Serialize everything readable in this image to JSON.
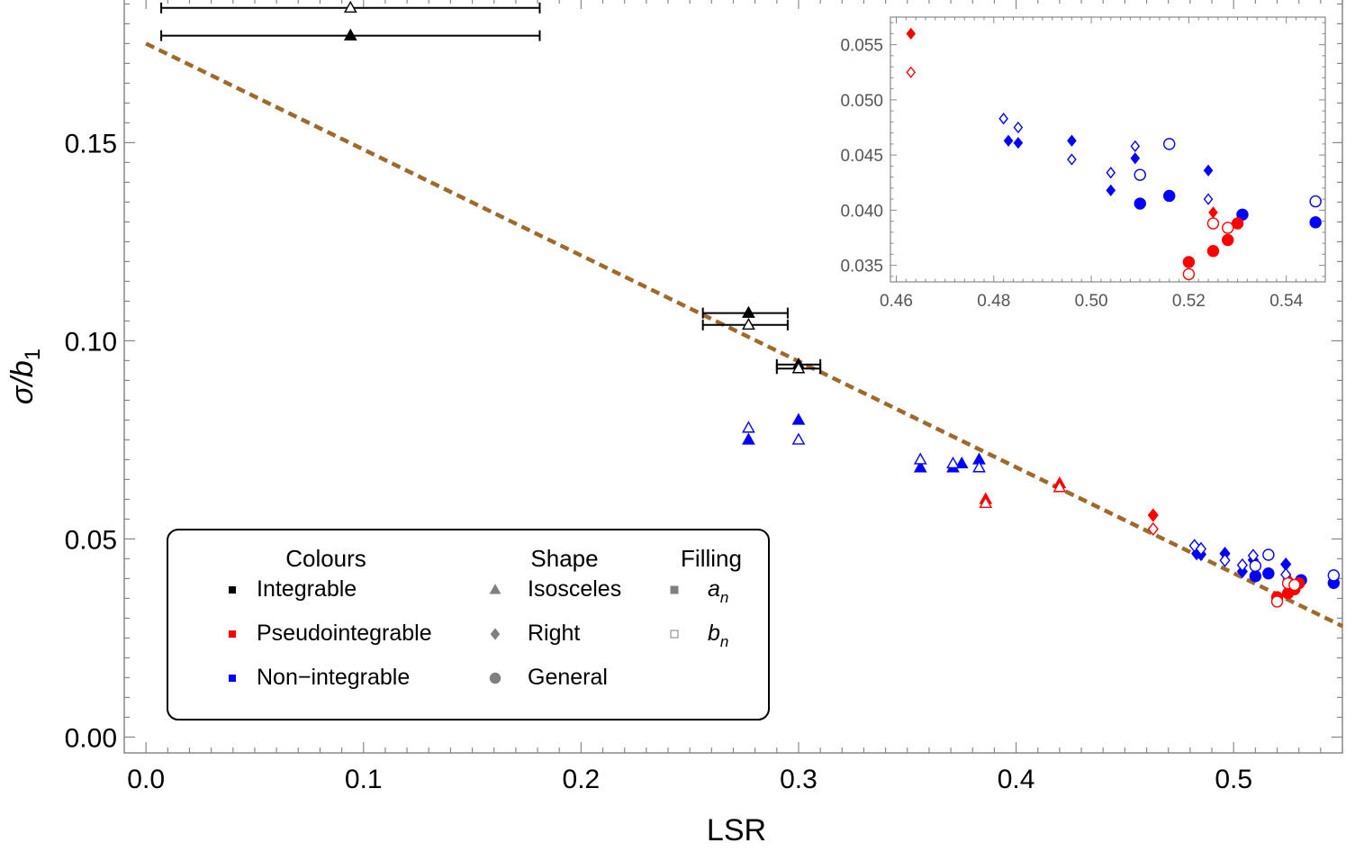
{
  "chart_data": {
    "type": "scatter",
    "xlabel": "LSR",
    "ylabel_main": "σ/b",
    "ylabel_sub": "1",
    "xlim": [
      -0.01,
      0.55
    ],
    "ylim": [
      -0.004,
      0.186
    ],
    "x_ticks": [
      0.0,
      0.1,
      0.2,
      0.3,
      0.4,
      0.5
    ],
    "x_tick_labels": [
      "0.0",
      "0.1",
      "0.2",
      "0.3",
      "0.4",
      "0.5"
    ],
    "y_ticks": [
      0.0,
      0.05,
      0.1,
      0.15
    ],
    "y_tick_labels": [
      "0.00",
      "0.05",
      "0.10",
      "0.15"
    ],
    "colors": {
      "Integrable": "#000000",
      "Pseudointegrable": "#ff0000",
      "Non-integrable": "#0000ff",
      "fit": "#a0692c"
    },
    "fit_line": {
      "style": "dashed",
      "points": [
        [
          0.0,
          0.175
        ],
        [
          0.55,
          0.028
        ]
      ]
    },
    "series": [
      {
        "cls": "Integrable",
        "shape": "triangle",
        "fill": "filled",
        "points": [
          [
            0.094,
            0.177
          ],
          [
            0.277,
            0.107
          ],
          [
            0.3,
            0.094
          ]
        ],
        "xerr": [
          [
            0.007,
            0.181
          ],
          [
            0.256,
            0.295
          ],
          [
            0.29,
            0.31
          ]
        ]
      },
      {
        "cls": "Integrable",
        "shape": "triangle",
        "fill": "open",
        "points": [
          [
            0.094,
            0.184
          ],
          [
            0.277,
            0.104
          ],
          [
            0.3,
            0.093
          ]
        ],
        "xerr": [
          [
            0.007,
            0.181
          ],
          [
            0.256,
            0.295
          ],
          [
            0.29,
            0.31
          ]
        ]
      },
      {
        "cls": "Non-integrable",
        "shape": "triangle",
        "fill": "filled",
        "points": [
          [
            0.277,
            0.075
          ],
          [
            0.3,
            0.08
          ],
          [
            0.356,
            0.068
          ],
          [
            0.371,
            0.068
          ],
          [
            0.375,
            0.069
          ],
          [
            0.383,
            0.07
          ]
        ]
      },
      {
        "cls": "Non-integrable",
        "shape": "triangle",
        "fill": "open",
        "points": [
          [
            0.277,
            0.078
          ],
          [
            0.3,
            0.075
          ],
          [
            0.356,
            0.07
          ],
          [
            0.371,
            0.069
          ],
          [
            0.383,
            0.068
          ]
        ]
      },
      {
        "cls": "Pseudointegrable",
        "shape": "triangle",
        "fill": "filled",
        "points": [
          [
            0.386,
            0.06
          ],
          [
            0.42,
            0.064
          ]
        ]
      },
      {
        "cls": "Pseudointegrable",
        "shape": "triangle",
        "fill": "open",
        "points": [
          [
            0.386,
            0.059
          ],
          [
            0.42,
            0.063
          ]
        ]
      },
      {
        "cls": "Pseudointegrable",
        "shape": "diamond",
        "fill": "filled",
        "points": [
          [
            0.463,
            0.056
          ],
          [
            0.525,
            0.0398
          ]
        ]
      },
      {
        "cls": "Pseudointegrable",
        "shape": "diamond",
        "fill": "open",
        "points": [
          [
            0.463,
            0.0525
          ]
        ]
      },
      {
        "cls": "Non-integrable",
        "shape": "diamond",
        "fill": "filled",
        "points": [
          [
            0.483,
            0.0463
          ],
          [
            0.485,
            0.0461
          ],
          [
            0.496,
            0.0463
          ],
          [
            0.504,
            0.0418
          ],
          [
            0.509,
            0.0447
          ],
          [
            0.524,
            0.0436
          ]
        ]
      },
      {
        "cls": "Non-integrable",
        "shape": "diamond",
        "fill": "open",
        "points": [
          [
            0.482,
            0.0483
          ],
          [
            0.485,
            0.0475
          ],
          [
            0.496,
            0.0446
          ],
          [
            0.504,
            0.0434
          ],
          [
            0.509,
            0.0458
          ],
          [
            0.524,
            0.041
          ]
        ]
      },
      {
        "cls": "Non-integrable",
        "shape": "circle",
        "fill": "filled",
        "points": [
          [
            0.51,
            0.0406
          ],
          [
            0.516,
            0.0413
          ],
          [
            0.531,
            0.0396
          ],
          [
            0.546,
            0.0389
          ]
        ]
      },
      {
        "cls": "Non-integrable",
        "shape": "circle",
        "fill": "open",
        "points": [
          [
            0.51,
            0.0432
          ],
          [
            0.516,
            0.046
          ],
          [
            0.546,
            0.0408
          ]
        ]
      },
      {
        "cls": "Pseudointegrable",
        "shape": "circle",
        "fill": "filled",
        "points": [
          [
            0.52,
            0.0353
          ],
          [
            0.525,
            0.0363
          ],
          [
            0.528,
            0.0373
          ],
          [
            0.53,
            0.0388
          ]
        ]
      },
      {
        "cls": "Pseudointegrable",
        "shape": "circle",
        "fill": "open",
        "points": [
          [
            0.52,
            0.0342
          ],
          [
            0.525,
            0.0388
          ],
          [
            0.528,
            0.0384
          ]
        ]
      }
    ],
    "inset": {
      "xlim": [
        0.4588,
        0.548
      ],
      "ylim": [
        0.0335,
        0.0575
      ],
      "x_ticks": [
        0.46,
        0.48,
        0.5,
        0.52,
        0.54
      ],
      "x_tick_labels": [
        "0.46",
        "0.48",
        "0.50",
        "0.52",
        "0.54"
      ],
      "y_ticks": [
        0.035,
        0.04,
        0.045,
        0.05,
        0.055
      ],
      "y_tick_labels": [
        "0.035",
        "0.040",
        "0.045",
        "0.050",
        "0.055"
      ]
    },
    "legend": {
      "placement": "bottom-left",
      "headers": {
        "colours": "Colours",
        "shape": "Shape",
        "filling": "Filling"
      },
      "colour_items": [
        {
          "label": "Integrable",
          "color": "#000000"
        },
        {
          "label": "Pseudointegrable",
          "color": "#ff0000"
        },
        {
          "label": "Non−integrable",
          "color": "#0000ff"
        }
      ],
      "shape_items": [
        {
          "label": "Isosceles",
          "shape": "triangle"
        },
        {
          "label": "Right",
          "shape": "diamond"
        },
        {
          "label": "General",
          "shape": "circle"
        }
      ],
      "filling_items": [
        {
          "label": "a",
          "sub": "n",
          "fill": "filled"
        },
        {
          "label": "b",
          "sub": "n",
          "fill": "open"
        }
      ]
    }
  }
}
